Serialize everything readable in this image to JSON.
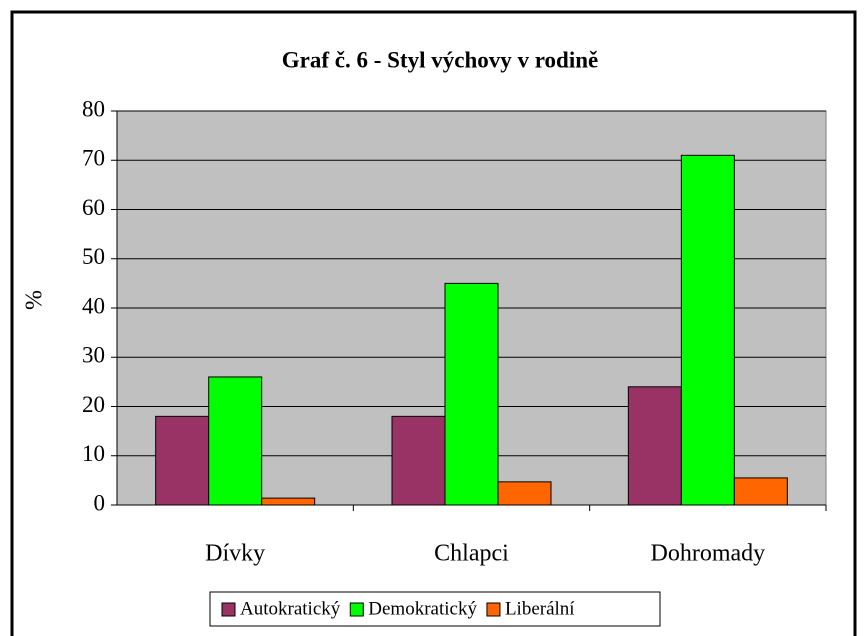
{
  "chart_data": {
    "type": "bar",
    "title": "Graf č. 6 - Styl výchovy v rodině",
    "y_label": "%",
    "categories": [
      "Dívky",
      "Chlapci",
      "Dohromady"
    ],
    "series": [
      {
        "name": "Autokratický",
        "color": "#993366",
        "values": [
          18,
          18,
          24
        ]
      },
      {
        "name": "Demokratický",
        "color": "#00ff00",
        "values": [
          26,
          45,
          71
        ]
      },
      {
        "name": "Liberální",
        "color": "#ff6600",
        "values": [
          1.4,
          4.7,
          5.5
        ]
      }
    ],
    "ylim": [
      0,
      80
    ],
    "yticks": [
      0,
      10,
      20,
      30,
      40,
      50,
      60,
      70,
      80
    ],
    "grid": true,
    "legend": "bottom"
  }
}
